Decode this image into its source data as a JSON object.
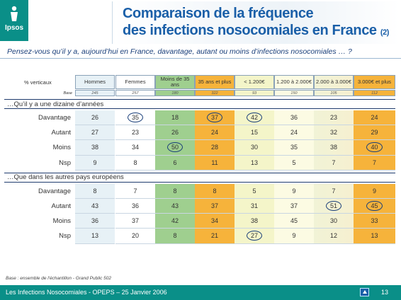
{
  "brand": "Ipsos",
  "title": {
    "line1": "Comparaison de la fréquence",
    "line2": "des infections nosocomiales en France",
    "suffix": "(2)"
  },
  "question": "Pensez-vous qu’il y a, aujourd’hui en France, davantage, autant ou moins d’infections nosocomiales … ?",
  "table": {
    "corner": "% verticaux",
    "columns": [
      "Hommes",
      "Femmes",
      "Moins de 35 ans",
      "35 ans et plus",
      "< 1.200€",
      "1.200 à 2.000€",
      "2.000 à 3.000€",
      "3.000€ et plus"
    ],
    "base_label": "Base",
    "base": [
      "245",
      "257",
      "180",
      "322",
      "93",
      "150",
      "105",
      "112"
    ],
    "sections": [
      {
        "title": "…Qu’il y a une dizaine d’années",
        "rows": [
          {
            "label": "Davantage",
            "values": [
              "26",
              "35",
              "18",
              "37",
              "42",
              "36",
              "23",
              "24"
            ]
          },
          {
            "label": "Autant",
            "values": [
              "27",
              "23",
              "26",
              "24",
              "15",
              "24",
              "32",
              "29"
            ]
          },
          {
            "label": "Moins",
            "values": [
              "38",
              "34",
              "50",
              "28",
              "30",
              "35",
              "38",
              "40"
            ]
          },
          {
            "label": "Nsp",
            "values": [
              "9",
              "8",
              "6",
              "11",
              "13",
              "5",
              "7",
              "7"
            ]
          }
        ]
      },
      {
        "title": "…Que dans les autres pays européens",
        "rows": [
          {
            "label": "Davantage",
            "values": [
              "8",
              "7",
              "8",
              "8",
              "5",
              "9",
              "7",
              "9"
            ]
          },
          {
            "label": "Autant",
            "values": [
              "43",
              "36",
              "43",
              "37",
              "31",
              "37",
              "51",
              "45"
            ]
          },
          {
            "label": "Moins",
            "values": [
              "36",
              "37",
              "42",
              "34",
              "38",
              "45",
              "30",
              "33"
            ]
          },
          {
            "label": "Nsp",
            "values": [
              "13",
              "20",
              "8",
              "21",
              "27",
              "9",
              "12",
              "13"
            ]
          }
        ]
      }
    ],
    "circled": {
      "0-0-1": true,
      "0-0-3": true,
      "0-0-4": true,
      "0-2-2": true,
      "0-2-7": true,
      "1-1-6": true,
      "1-1-7": true,
      "1-3-4": true
    }
  },
  "footnote": "Base : ensemble de l'échantillon - Grand Public 502",
  "footer": {
    "text": "Les Infections Nosocomiales - OPEPS – 25 Janvier 2006",
    "page": "13",
    "nav_icon": "home-icon"
  },
  "colors": {
    "teal": "#0a8f88",
    "title_blue": "#1a5fa8",
    "green_col": "#9fcf8f",
    "orange_col": "#f6b33b"
  }
}
